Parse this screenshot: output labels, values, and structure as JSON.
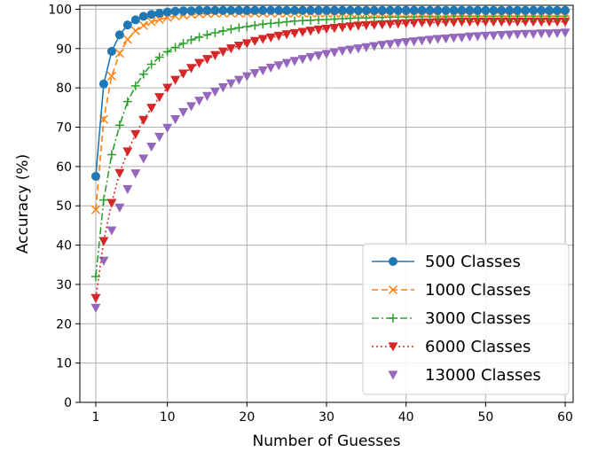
{
  "chart_data": {
    "type": "line",
    "title": "",
    "xlabel": "Number of Guesses",
    "ylabel": "Accuracy (%)",
    "xlim": [
      -1,
      61
    ],
    "ylim": [
      0,
      101
    ],
    "xticks": [
      1,
      10,
      20,
      30,
      40,
      50,
      60
    ],
    "yticks": [
      0,
      10,
      20,
      30,
      40,
      50,
      60,
      70,
      80,
      90,
      100
    ],
    "grid": true,
    "legend_position": "bottom-right",
    "x": [
      1,
      2,
      3,
      4,
      5,
      6,
      7,
      8,
      9,
      10,
      11,
      12,
      13,
      14,
      15,
      16,
      17,
      18,
      19,
      20,
      21,
      22,
      23,
      24,
      25,
      26,
      27,
      28,
      29,
      30,
      31,
      32,
      33,
      34,
      35,
      36,
      37,
      38,
      39,
      40,
      41,
      42,
      43,
      44,
      45,
      46,
      47,
      48,
      49,
      50,
      51,
      52,
      53,
      54,
      55,
      56,
      57,
      58,
      59,
      60
    ],
    "series": [
      {
        "name": "500 Classes",
        "color": "#1f77b4",
        "marker": "circle",
        "line": "solid",
        "values": [
          57.5,
          81.0,
          89.3,
          93.5,
          96.0,
          97.3,
          98.2,
          98.7,
          99.0,
          99.3,
          99.5,
          99.6,
          99.6,
          99.7,
          99.7,
          99.7,
          99.7,
          99.7,
          99.7,
          99.7,
          99.7,
          99.7,
          99.7,
          99.7,
          99.7,
          99.7,
          99.7,
          99.7,
          99.7,
          99.7,
          99.7,
          99.7,
          99.7,
          99.7,
          99.7,
          99.7,
          99.7,
          99.7,
          99.7,
          99.7,
          99.7,
          99.7,
          99.7,
          99.7,
          99.7,
          99.7,
          99.7,
          99.7,
          99.7,
          99.7,
          99.7,
          99.7,
          99.7,
          99.7,
          99.7,
          99.7,
          99.7,
          99.7,
          99.7,
          99.7
        ]
      },
      {
        "name": "1000 Classes",
        "color": "#ff7f0e",
        "marker": "x",
        "line": "dashed",
        "values": [
          49.0,
          72.0,
          83.0,
          88.8,
          92.3,
          94.5,
          95.9,
          96.8,
          97.4,
          97.9,
          98.3,
          98.5,
          98.7,
          98.8,
          98.9,
          99.0,
          99.0,
          99.0,
          99.0,
          99.0,
          99.0,
          99.0,
          99.0,
          99.0,
          99.0,
          99.0,
          99.0,
          99.0,
          99.0,
          99.0,
          99.0,
          99.0,
          99.0,
          99.0,
          99.0,
          99.0,
          99.0,
          99.0,
          99.0,
          99.0,
          99.0,
          99.0,
          99.0,
          99.0,
          99.0,
          99.0,
          99.0,
          99.0,
          99.0,
          99.0,
          99.0,
          99.0,
          99.0,
          99.0,
          99.0,
          99.0,
          99.0,
          99.0,
          99.0,
          99.0
        ]
      },
      {
        "name": "3000 Classes",
        "color": "#2ca02c",
        "marker": "plus",
        "line": "dashdot",
        "values": [
          32.0,
          51.5,
          63.0,
          70.5,
          76.5,
          80.5,
          83.5,
          86.0,
          87.8,
          89.2,
          90.3,
          91.3,
          92.2,
          92.9,
          93.5,
          94.0,
          94.5,
          94.9,
          95.3,
          95.6,
          95.9,
          96.2,
          96.4,
          96.6,
          96.8,
          97.0,
          97.1,
          97.2,
          97.3,
          97.4,
          97.5,
          97.6,
          97.7,
          97.8,
          97.8,
          97.9,
          97.9,
          98.0,
          98.0,
          98.0,
          98.0,
          98.1,
          98.1,
          98.1,
          98.1,
          98.2,
          98.2,
          98.2,
          98.2,
          98.2,
          98.2,
          98.2,
          98.2,
          98.2,
          98.2,
          98.2,
          98.2,
          98.2,
          98.2,
          98.2
        ]
      },
      {
        "name": "6000 Classes",
        "color": "#d62728",
        "marker": "triangle-down",
        "line": "dotted",
        "values": [
          26.5,
          41.0,
          50.7,
          58.3,
          63.8,
          68.2,
          71.8,
          74.9,
          77.6,
          80.0,
          82.0,
          83.6,
          85.0,
          86.3,
          87.3,
          88.3,
          89.2,
          90.0,
          90.7,
          91.3,
          91.9,
          92.4,
          92.8,
          93.2,
          93.6,
          93.9,
          94.2,
          94.5,
          94.8,
          95.0,
          95.2,
          95.4,
          95.6,
          95.8,
          95.9,
          96.0,
          96.1,
          96.2,
          96.3,
          96.4,
          96.5,
          96.6,
          96.6,
          96.7,
          96.7,
          96.7,
          96.8,
          96.8,
          96.8,
          96.8,
          96.8,
          96.8,
          96.8,
          96.8,
          96.8,
          96.8,
          96.8,
          96.8,
          96.8,
          96.8
        ]
      },
      {
        "name": "13000 Classes",
        "color": "#9467bd",
        "marker": "triangle-down",
        "line": "none",
        "values": [
          24.0,
          36.0,
          43.7,
          49.5,
          54.2,
          58.2,
          62.0,
          65.0,
          67.5,
          69.8,
          72.0,
          73.8,
          75.3,
          76.7,
          77.9,
          79.0,
          80.1,
          81.1,
          82.0,
          82.9,
          83.7,
          84.4,
          85.1,
          85.7,
          86.3,
          86.8,
          87.3,
          87.8,
          88.2,
          88.6,
          89.0,
          89.4,
          89.7,
          90.0,
          90.3,
          90.6,
          90.9,
          91.1,
          91.4,
          91.6,
          91.8,
          92.0,
          92.2,
          92.4,
          92.5,
          92.7,
          92.8,
          93.0,
          93.1,
          93.2,
          93.3,
          93.4,
          93.5,
          93.6,
          93.7,
          93.7,
          93.8,
          93.8,
          93.9,
          94.0
        ]
      }
    ]
  }
}
